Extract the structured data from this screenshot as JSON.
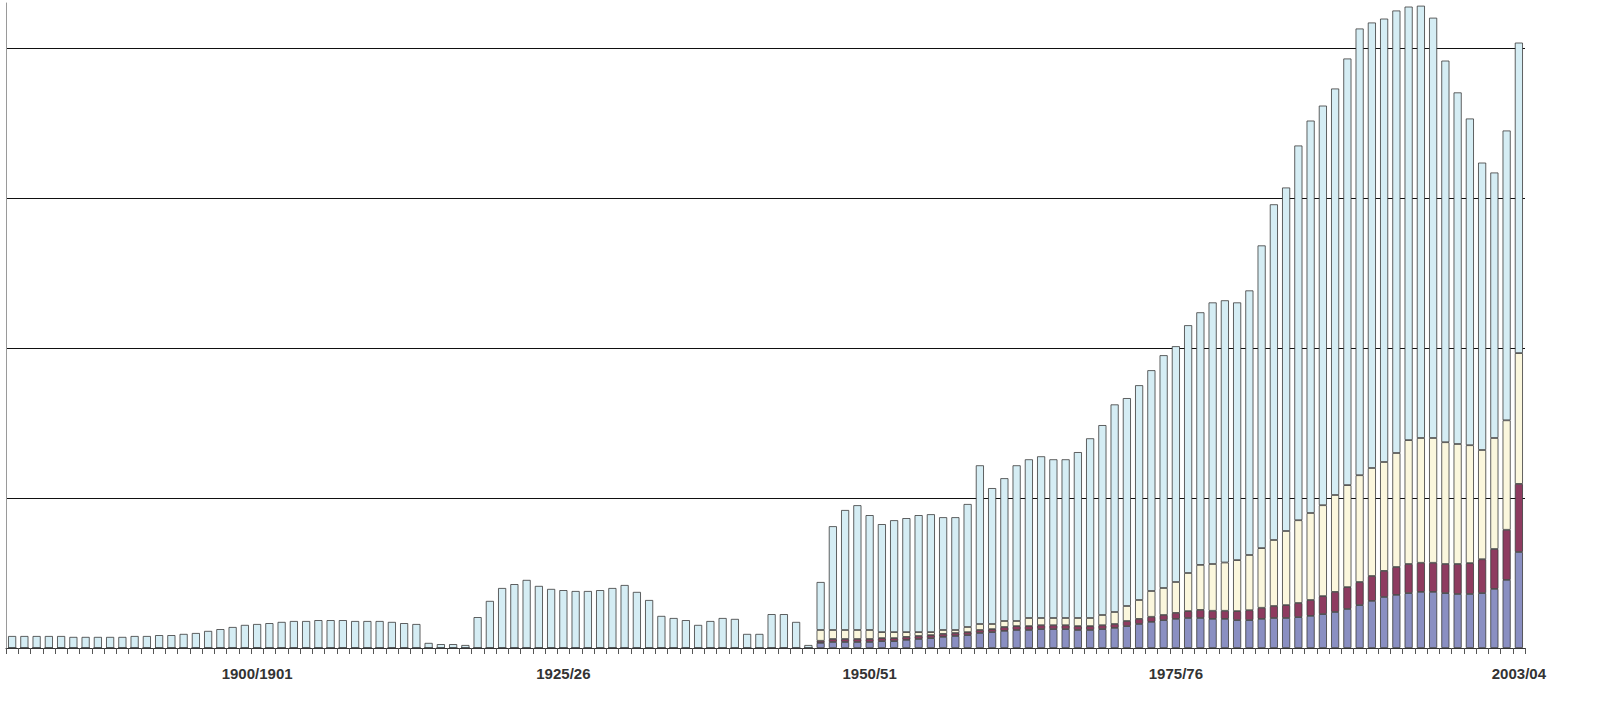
{
  "chart_data": {
    "type": "bar",
    "stacked": true,
    "grid": true,
    "tick_labels": "x",
    "ylim": [
      0,
      21500
    ],
    "yticks": [
      0,
      5000,
      10000,
      15000,
      20000
    ],
    "categories": [
      null,
      null,
      null,
      null,
      null,
      null,
      null,
      null,
      null,
      null,
      null,
      null,
      null,
      null,
      null,
      null,
      null,
      null,
      null,
      null,
      "1900/1901",
      null,
      null,
      null,
      null,
      null,
      null,
      null,
      null,
      null,
      null,
      null,
      null,
      null,
      null,
      null,
      null,
      null,
      null,
      null,
      null,
      null,
      null,
      null,
      null,
      "1925/26",
      null,
      null,
      null,
      null,
      null,
      null,
      null,
      null,
      null,
      null,
      null,
      null,
      null,
      null,
      null,
      null,
      null,
      null,
      null,
      null,
      null,
      null,
      null,
      null,
      "1950/51",
      null,
      null,
      null,
      null,
      null,
      null,
      null,
      null,
      null,
      null,
      null,
      null,
      null,
      null,
      null,
      null,
      null,
      null,
      null,
      null,
      null,
      null,
      null,
      null,
      "1975/76",
      null,
      null,
      null,
      null,
      null,
      null,
      null,
      null,
      null,
      null,
      null,
      null,
      null,
      null,
      null,
      null,
      null,
      null,
      null,
      null,
      null,
      null,
      null,
      null,
      null,
      null,
      null,
      "2003/04"
    ],
    "series": [
      {
        "color": "#8a8fc2",
        "values": [
          0,
          0,
          0,
          0,
          0,
          0,
          0,
          0,
          0,
          0,
          0,
          0,
          0,
          0,
          0,
          0,
          0,
          0,
          0,
          0,
          0,
          0,
          0,
          0,
          0,
          0,
          0,
          0,
          0,
          0,
          0,
          0,
          0,
          0,
          0,
          0,
          0,
          0,
          0,
          0,
          0,
          0,
          0,
          0,
          0,
          0,
          0,
          0,
          0,
          0,
          0,
          0,
          0,
          0,
          0,
          0,
          0,
          0,
          0,
          0,
          0,
          0,
          0,
          0,
          0,
          0,
          170,
          200,
          200,
          200,
          200,
          230,
          230,
          270,
          300,
          330,
          370,
          400,
          430,
          500,
          530,
          570,
          600,
          600,
          630,
          630,
          630,
          600,
          600,
          630,
          670,
          730,
          800,
          870,
          930,
          970,
          1000,
          1000,
          970,
          970,
          930,
          930,
          970,
          1000,
          1000,
          1030,
          1070,
          1130,
          1200,
          1300,
          1430,
          1570,
          1700,
          1770,
          1830,
          1870,
          1870,
          1830,
          1800,
          1800,
          1830,
          1970,
          2270,
          3200
        ]
      },
      {
        "color": "#8e3b60",
        "values": [
          0,
          0,
          0,
          0,
          0,
          0,
          0,
          0,
          0,
          0,
          0,
          0,
          0,
          0,
          0,
          0,
          0,
          0,
          0,
          0,
          0,
          0,
          0,
          0,
          0,
          0,
          0,
          0,
          0,
          0,
          0,
          0,
          0,
          0,
          0,
          0,
          0,
          0,
          0,
          0,
          0,
          0,
          0,
          0,
          0,
          0,
          0,
          0,
          0,
          0,
          0,
          0,
          0,
          0,
          0,
          0,
          0,
          0,
          0,
          0,
          0,
          0,
          0,
          0,
          0,
          0,
          70,
          100,
          100,
          100,
          100,
          100,
          100,
          100,
          100,
          100,
          100,
          100,
          100,
          100,
          100,
          130,
          130,
          130,
          130,
          130,
          130,
          130,
          130,
          130,
          130,
          170,
          170,
          170,
          170,
          200,
          230,
          270,
          270,
          270,
          300,
          330,
          370,
          400,
          430,
          470,
          530,
          600,
          670,
          730,
          770,
          830,
          870,
          930,
          970,
          970,
          970,
          970,
          1000,
          1030,
          1130,
          1330,
          1670,
          2270
        ]
      },
      {
        "color": "#fbf7dd",
        "values": [
          0,
          0,
          0,
          0,
          0,
          0,
          0,
          0,
          0,
          0,
          0,
          0,
          0,
          0,
          0,
          0,
          0,
          0,
          0,
          0,
          0,
          0,
          0,
          0,
          0,
          0,
          0,
          0,
          0,
          0,
          0,
          0,
          0,
          0,
          0,
          0,
          0,
          0,
          0,
          0,
          0,
          0,
          0,
          0,
          0,
          0,
          0,
          0,
          0,
          0,
          0,
          0,
          0,
          0,
          0,
          0,
          0,
          0,
          0,
          0,
          0,
          0,
          0,
          0,
          0,
          0,
          360,
          300,
          300,
          300,
          300,
          200,
          200,
          160,
          130,
          100,
          130,
          100,
          170,
          200,
          170,
          200,
          170,
          270,
          240,
          240,
          240,
          270,
          270,
          340,
          400,
          500,
          630,
          860,
          900,
          1030,
          1270,
          1500,
          1560,
          1610,
          1700,
          1840,
          1990,
          2200,
          2470,
          2760,
          2900,
          3030,
          3230,
          3400,
          3560,
          3600,
          3630,
          3800,
          4130,
          4160,
          4160,
          4060,
          4000,
          3930,
          3640,
          3700,
          3650,
          4360
        ]
      },
      {
        "color": "#d5edf4",
        "values": [
          400,
          400,
          400,
          400,
          400,
          370,
          370,
          370,
          370,
          370,
          400,
          400,
          430,
          430,
          470,
          500,
          570,
          630,
          700,
          770,
          800,
          830,
          870,
          900,
          900,
          930,
          930,
          930,
          900,
          900,
          900,
          870,
          830,
          800,
          170,
          130,
          130,
          100,
          1030,
          1570,
          2000,
          2130,
          2270,
          2070,
          1970,
          1930,
          1900,
          1900,
          1930,
          2000,
          2100,
          1870,
          1600,
          1070,
          1000,
          930,
          770,
          900,
          1000,
          970,
          470,
          470,
          1130,
          1130,
          870,
          100,
          1600,
          3460,
          4000,
          4160,
          3830,
          3600,
          3730,
          3800,
          3900,
          3930,
          3760,
          3760,
          4100,
          5290,
          4530,
          4760,
          5190,
          5290,
          5390,
          5290,
          5290,
          5530,
          5990,
          6330,
          6920,
          6930,
          7160,
          7360,
          7760,
          7860,
          8260,
          8420,
          8720,
          8740,
          8590,
          8820,
          10090,
          11190,
          11450,
          12490,
          13080,
          13320,
          13550,
          14220,
          14890,
          14850,
          14780,
          14750,
          14450,
          14410,
          14010,
          12720,
          11720,
          10890,
          9580,
          8850,
          9660,
          10350
        ]
      }
    ]
  }
}
